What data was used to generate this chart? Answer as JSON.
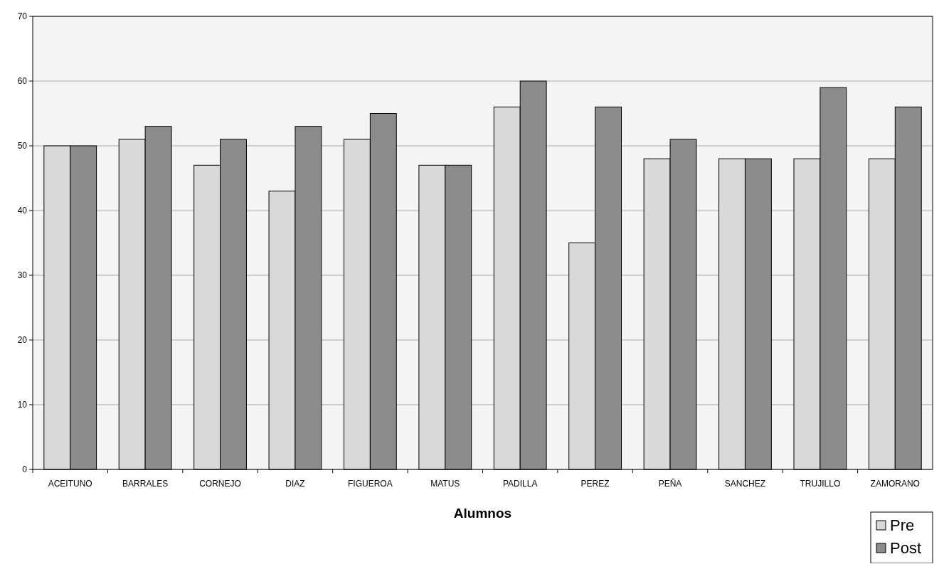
{
  "chart_data": {
    "type": "bar",
    "xlabel": "Alumnos",
    "categories": [
      "ACEITUNO",
      "BARRALES",
      "CORNEJO",
      "DIAZ",
      "FIGUEROA",
      "MATUS",
      "PADILLA",
      "PEREZ",
      "PEÑA",
      "SANCHEZ",
      "TRUJILLO",
      "ZAMORANO"
    ],
    "series": [
      {
        "name": "Pre",
        "color": "#d9d9d9",
        "values": [
          50,
          51,
          47,
          43,
          51,
          47,
          56,
          35,
          48,
          48,
          48,
          48
        ]
      },
      {
        "name": "Post",
        "color": "#8c8c8c",
        "values": [
          50,
          53,
          51,
          53,
          55,
          47,
          60,
          56,
          51,
          48,
          59,
          56
        ]
      }
    ],
    "ylim": [
      0,
      70
    ],
    "yticks": [
      0,
      10,
      20,
      30,
      40,
      50,
      60,
      70
    ],
    "grid": "y",
    "legend": "bottom right"
  }
}
